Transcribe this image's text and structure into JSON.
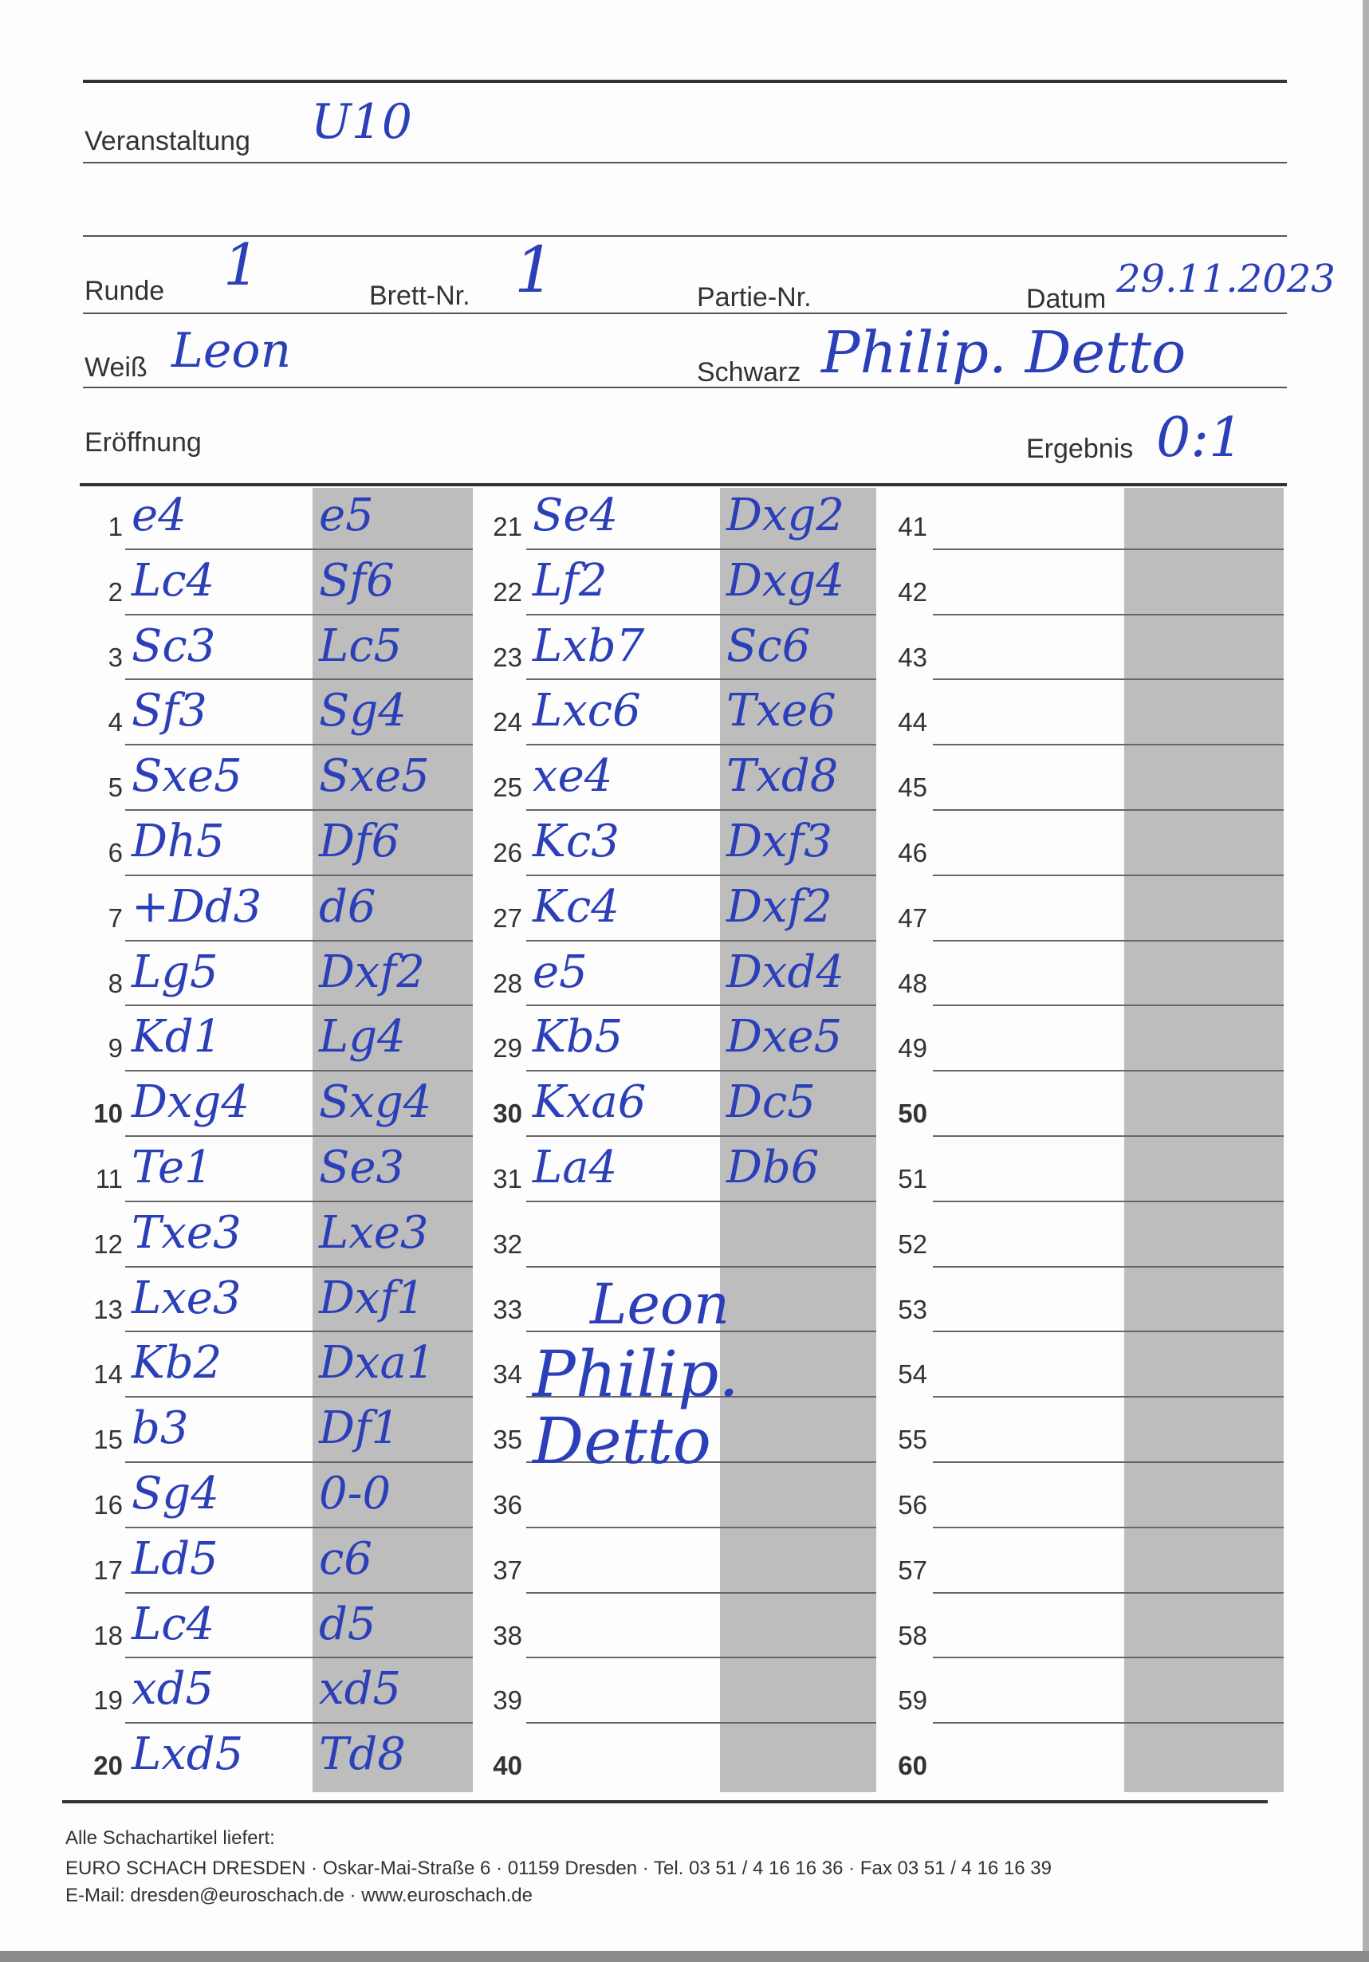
{
  "header": {
    "event_label": "Veranstaltung",
    "event_value": "U10",
    "round_label": "Runde",
    "round_value": "1",
    "board_label": "Brett-Nr.",
    "board_value": "1",
    "game_label": "Partie-Nr.",
    "date_label": "Datum",
    "date_value": "29.11.2023",
    "white_label": "Weiß",
    "white_value": "Leon",
    "black_label": "Schwarz",
    "black_value": "Philip. Detto",
    "opening_label": "Eröffnung",
    "result_label": "Ergebnis",
    "result_value": "0:1"
  },
  "moves": [
    {
      "n": "1",
      "white": "e4",
      "black": "e5"
    },
    {
      "n": "2",
      "white": "Lc4",
      "black": "Sf6"
    },
    {
      "n": "3",
      "white": "Sc3",
      "black": "Lc5"
    },
    {
      "n": "4",
      "white": "Sf3",
      "black": "Sg4"
    },
    {
      "n": "5",
      "white": "Sxe5",
      "black": "Sxe5"
    },
    {
      "n": "6",
      "white": "Dh5",
      "black": "Df6"
    },
    {
      "n": "7",
      "white": "+Dd3",
      "black": "d6"
    },
    {
      "n": "8",
      "white": "Lg5",
      "black": "Dxf2"
    },
    {
      "n": "9",
      "white": "Kd1",
      "black": "Lg4"
    },
    {
      "n": "10",
      "white": "Dxg4",
      "black": "Sxg4"
    },
    {
      "n": "11",
      "white": "Te1",
      "black": "Se3"
    },
    {
      "n": "12",
      "white": "Txe3",
      "black": "Lxe3"
    },
    {
      "n": "13",
      "white": "Lxe3",
      "black": "Dxf1"
    },
    {
      "n": "14",
      "white": "Kb2",
      "black": "Dxa1"
    },
    {
      "n": "15",
      "white": "b3",
      "black": "Df1"
    },
    {
      "n": "16",
      "white": "Sg4",
      "black": "0-0"
    },
    {
      "n": "17",
      "white": "Ld5",
      "black": "c6"
    },
    {
      "n": "18",
      "white": "Lc4",
      "black": "d5"
    },
    {
      "n": "19",
      "white": "xd5",
      "black": "xd5"
    },
    {
      "n": "20",
      "white": "Lxd5",
      "black": "Td8"
    },
    {
      "n": "21",
      "white": "Se4",
      "black": "Dxg2"
    },
    {
      "n": "22",
      "white": "Lf2",
      "black": "Dxg4"
    },
    {
      "n": "23",
      "white": "Lxb7",
      "black": "Sc6"
    },
    {
      "n": "24",
      "white": "Lxc6",
      "black": "Txe6"
    },
    {
      "n": "25",
      "white": "xe4",
      "black": "Txd8"
    },
    {
      "n": "26",
      "white": "Kc3",
      "black": "Dxf3"
    },
    {
      "n": "27",
      "white": "Kc4",
      "black": "Dxf2"
    },
    {
      "n": "28",
      "white": "e5",
      "black": "Dxd4"
    },
    {
      "n": "29",
      "white": "Kb5",
      "black": "Dxe5"
    },
    {
      "n": "30",
      "white": "Kxa6",
      "black": "Dc5"
    },
    {
      "n": "31",
      "white": "La4",
      "black": "Db6"
    },
    {
      "n": "32",
      "white": "",
      "black": ""
    },
    {
      "n": "33",
      "white": "",
      "black": ""
    },
    {
      "n": "34",
      "white": "",
      "black": ""
    },
    {
      "n": "35",
      "white": "",
      "black": ""
    },
    {
      "n": "36",
      "white": "",
      "black": ""
    },
    {
      "n": "37",
      "white": "",
      "black": ""
    },
    {
      "n": "38",
      "white": "",
      "black": ""
    },
    {
      "n": "39",
      "white": "",
      "black": ""
    },
    {
      "n": "40",
      "white": "",
      "black": ""
    },
    {
      "n": "41",
      "white": "",
      "black": ""
    },
    {
      "n": "42",
      "white": "",
      "black": ""
    },
    {
      "n": "43",
      "white": "",
      "black": ""
    },
    {
      "n": "44",
      "white": "",
      "black": ""
    },
    {
      "n": "45",
      "white": "",
      "black": ""
    },
    {
      "n": "46",
      "white": "",
      "black": ""
    },
    {
      "n": "47",
      "white": "",
      "black": ""
    },
    {
      "n": "48",
      "white": "",
      "black": ""
    },
    {
      "n": "49",
      "white": "",
      "black": ""
    },
    {
      "n": "50",
      "white": "",
      "black": ""
    },
    {
      "n": "51",
      "white": "",
      "black": ""
    },
    {
      "n": "52",
      "white": "",
      "black": ""
    },
    {
      "n": "53",
      "white": "",
      "black": ""
    },
    {
      "n": "54",
      "white": "",
      "black": ""
    },
    {
      "n": "55",
      "white": "",
      "black": ""
    },
    {
      "n": "56",
      "white": "",
      "black": ""
    },
    {
      "n": "57",
      "white": "",
      "black": ""
    },
    {
      "n": "58",
      "white": "",
      "black": ""
    },
    {
      "n": "59",
      "white": "",
      "black": ""
    },
    {
      "n": "60",
      "white": "",
      "black": ""
    }
  ],
  "signatures": {
    "white": "Leon",
    "black": "Philip. Detto"
  },
  "footer": {
    "line1": "Alle Schachartikel liefert:",
    "line2": "EURO SCHACH DRESDEN · Oskar-Mai-Straße 6 · 01159 Dresden · Tel. 03 51 / 4 16 16 36 · Fax 03 51 / 4 16 16 39",
    "line3": "E-Mail: dresden@euroschach.de · www.euroschach.de"
  },
  "colors": {
    "ink": "#2b3fb8",
    "black_column": "#bdbdbd"
  }
}
